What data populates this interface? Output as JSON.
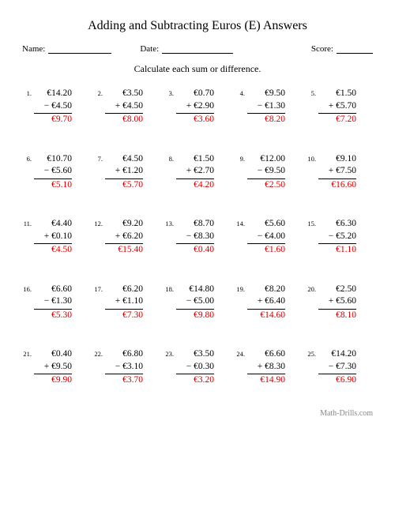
{
  "title": "Adding and Subtracting Euros (E) Answers",
  "name_label": "Name:",
  "date_label": "Date:",
  "score_label": "Score:",
  "instruction": "Calculate each sum or difference.",
  "footer": "Math-Drills.com",
  "answer_color": "#cc0000",
  "problems": [
    {
      "n": "1.",
      "a": "€14.20",
      "op": "−",
      "b": "€4.50",
      "ans": "€9.70"
    },
    {
      "n": "2.",
      "a": "€3.50",
      "op": "+",
      "b": "€4.50",
      "ans": "€8.00"
    },
    {
      "n": "3.",
      "a": "€0.70",
      "op": "+",
      "b": "€2.90",
      "ans": "€3.60"
    },
    {
      "n": "4.",
      "a": "€9.50",
      "op": "−",
      "b": "€1.30",
      "ans": "€8.20"
    },
    {
      "n": "5.",
      "a": "€1.50",
      "op": "+",
      "b": "€5.70",
      "ans": "€7.20"
    },
    {
      "n": "6.",
      "a": "€10.70",
      "op": "−",
      "b": "€5.60",
      "ans": "€5.10"
    },
    {
      "n": "7.",
      "a": "€4.50",
      "op": "+",
      "b": "€1.20",
      "ans": "€5.70"
    },
    {
      "n": "8.",
      "a": "€1.50",
      "op": "+",
      "b": "€2.70",
      "ans": "€4.20"
    },
    {
      "n": "9.",
      "a": "€12.00",
      "op": "−",
      "b": "€9.50",
      "ans": "€2.50"
    },
    {
      "n": "10.",
      "a": "€9.10",
      "op": "+",
      "b": "€7.50",
      "ans": "€16.60"
    },
    {
      "n": "11.",
      "a": "€4.40",
      "op": "+",
      "b": "€0.10",
      "ans": "€4.50"
    },
    {
      "n": "12.",
      "a": "€9.20",
      "op": "+",
      "b": "€6.20",
      "ans": "€15.40"
    },
    {
      "n": "13.",
      "a": "€8.70",
      "op": "−",
      "b": "€8.30",
      "ans": "€0.40"
    },
    {
      "n": "14.",
      "a": "€5.60",
      "op": "−",
      "b": "€4.00",
      "ans": "€1.60"
    },
    {
      "n": "15.",
      "a": "€6.30",
      "op": "−",
      "b": "€5.20",
      "ans": "€1.10"
    },
    {
      "n": "16.",
      "a": "€6.60",
      "op": "−",
      "b": "€1.30",
      "ans": "€5.30"
    },
    {
      "n": "17.",
      "a": "€6.20",
      "op": "+",
      "b": "€1.10",
      "ans": "€7.30"
    },
    {
      "n": "18.",
      "a": "€14.80",
      "op": "−",
      "b": "€5.00",
      "ans": "€9.80"
    },
    {
      "n": "19.",
      "a": "€8.20",
      "op": "+",
      "b": "€6.40",
      "ans": "€14.60"
    },
    {
      "n": "20.",
      "a": "€2.50",
      "op": "+",
      "b": "€5.60",
      "ans": "€8.10"
    },
    {
      "n": "21.",
      "a": "€0.40",
      "op": "+",
      "b": "€9.50",
      "ans": "€9.90"
    },
    {
      "n": "22.",
      "a": "€6.80",
      "op": "−",
      "b": "€3.10",
      "ans": "€3.70"
    },
    {
      "n": "23.",
      "a": "€3.50",
      "op": "−",
      "b": "€0.30",
      "ans": "€3.20"
    },
    {
      "n": "24.",
      "a": "€6.60",
      "op": "+",
      "b": "€8.30",
      "ans": "€14.90"
    },
    {
      "n": "25.",
      "a": "€14.20",
      "op": "−",
      "b": "€7.30",
      "ans": "€6.90"
    }
  ]
}
